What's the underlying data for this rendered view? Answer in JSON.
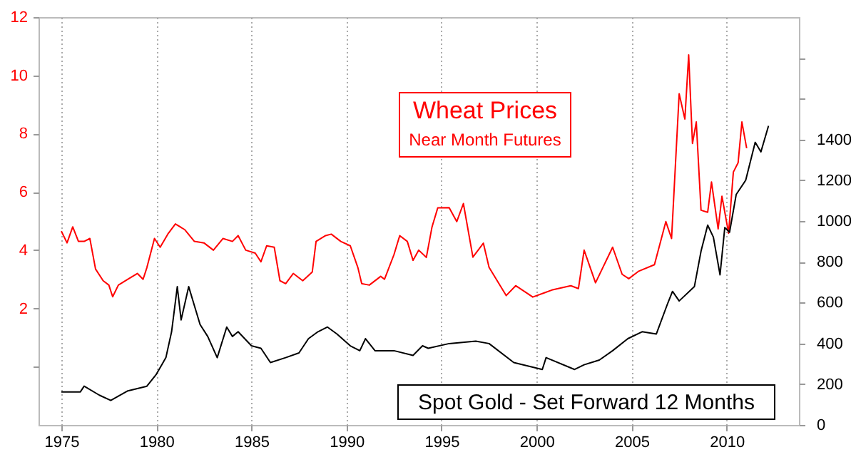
{
  "chart_data": {
    "type": "line",
    "xlim": [
      1973.8,
      2013.8
    ],
    "xticks": [
      1975,
      1980,
      1985,
      1990,
      1995,
      2000,
      2005,
      2010
    ],
    "ylim": [
      -2,
      12
    ],
    "yticks": [
      {
        "value": 0,
        "label": null
      },
      2,
      4,
      6,
      8,
      10,
      12
    ],
    "y2lim": [
      0,
      2000
    ],
    "y2ticks": [
      0,
      200,
      400,
      600,
      800,
      1000,
      1200,
      1400,
      {
        "value": 1600,
        "label": null
      },
      {
        "value": 1800,
        "label": null
      }
    ],
    "grid": "x",
    "annotations": [
      "Near Month Futures"
    ],
    "series": [
      {
        "name": "Wheat Prices",
        "color": "#ff0000",
        "x": [
          1975.0,
          1975.3,
          1975.6,
          1975.9,
          1976.2,
          1976.5,
          1976.8,
          1977.2,
          1977.5,
          1977.7,
          1978.0,
          1978.5,
          1979.0,
          1979.3,
          1979.5,
          1979.9,
          1980.2,
          1980.6,
          1981.0,
          1981.5,
          1982.0,
          1982.5,
          1983.0,
          1983.5,
          1984.0,
          1984.3,
          1984.7,
          1985.2,
          1985.5,
          1985.8,
          1986.2,
          1986.5,
          1986.8,
          1987.2,
          1987.7,
          1988.2,
          1988.4,
          1988.9,
          1989.2,
          1989.7,
          1990.2,
          1990.6,
          1990.8,
          1991.2,
          1991.8,
          1992.0,
          1992.5,
          1992.8,
          1993.2,
          1993.5,
          1993.8,
          1994.2,
          1994.5,
          1994.8,
          1995.4,
          1995.8,
          1996.15,
          1996.65,
          1997.2,
          1997.5,
          1998.4,
          1998.9,
          1999.8,
          2000.8,
          2001.8,
          2002.2,
          2002.5,
          2003.1,
          2004.0,
          2004.5,
          2004.85,
          2005.35,
          2006.2,
          2006.8,
          2007.1,
          2007.5,
          2007.8,
          2008.0,
          2008.2,
          2008.4,
          2008.65,
          2009.0,
          2009.2,
          2009.55,
          2009.75,
          2010.1,
          2010.35,
          2010.6,
          2010.8,
          2011.05
        ],
        "values": [
          4.65,
          4.25,
          4.8,
          4.3,
          4.3,
          4.4,
          3.35,
          2.95,
          2.8,
          2.4,
          2.8,
          3.0,
          3.2,
          3.0,
          3.4,
          4.4,
          4.1,
          4.55,
          4.9,
          4.7,
          4.3,
          4.25,
          4.0,
          4.4,
          4.3,
          4.5,
          4.0,
          3.9,
          3.6,
          4.15,
          4.1,
          2.95,
          2.85,
          3.2,
          2.95,
          3.25,
          4.3,
          4.5,
          4.55,
          4.3,
          4.15,
          3.4,
          2.85,
          2.8,
          3.1,
          3.0,
          3.85,
          4.5,
          4.3,
          3.65,
          4.0,
          3.75,
          4.8,
          5.45,
          5.46,
          4.98,
          5.6,
          3.76,
          4.24,
          3.41,
          2.44,
          2.78,
          2.39,
          2.63,
          2.78,
          2.68,
          4.0,
          2.88,
          4.1,
          3.17,
          3.02,
          3.27,
          3.5,
          4.98,
          4.4,
          9.37,
          8.5,
          10.7,
          7.66,
          8.4,
          5.37,
          5.3,
          6.34,
          4.73,
          5.85,
          4.58,
          6.68,
          7.0,
          8.4,
          7.5
        ]
      },
      {
        "name": "Spot Gold - Set Forward 12 Months",
        "color": "#000000",
        "axis": "y2",
        "x": [
          1975.0,
          1976.0,
          1976.2,
          1977.0,
          1977.6,
          1978.5,
          1979.5,
          1980.0,
          1980.5,
          1980.8,
          1981.1,
          1981.3,
          1981.7,
          1982.0,
          1982.3,
          1982.7,
          1983.2,
          1983.7,
          1984.0,
          1984.3,
          1985.0,
          1985.5,
          1986.0,
          1986.8,
          1987.5,
          1988.0,
          1988.5,
          1989.0,
          1989.5,
          1990.2,
          1990.7,
          1991.0,
          1991.5,
          1992.5,
          1993.5,
          1994.0,
          1994.3,
          1995.4,
          1996.8,
          1997.5,
          1998.8,
          2000.3,
          2000.5,
          2002.0,
          2002.5,
          2003.3,
          2004.0,
          2004.8,
          2005.55,
          2006.3,
          2006.9,
          2007.15,
          2007.5,
          2008.3,
          2008.65,
          2009.0,
          2009.3,
          2009.65,
          2009.9,
          2010.15,
          2010.5,
          2011.0,
          2011.5,
          2011.8,
          2012.2
        ],
        "values": [
          162,
          162,
          190,
          146,
          120,
          167,
          190,
          249,
          330,
          457,
          678,
          515,
          678,
          585,
          492,
          434,
          330,
          480,
          434,
          457,
          388,
          376,
          306,
          330,
          353,
          423,
          457,
          480,
          446,
          388,
          364,
          423,
          364,
          364,
          341,
          388,
          376,
          399,
          411,
          399,
          306,
          272,
          330,
          272,
          295,
          318,
          364,
          423,
          457,
          446,
          597,
          655,
          608,
          678,
          852,
          980,
          921,
          736,
          968,
          945,
          1130,
          1200,
          1386,
          1339,
          1467
        ]
      }
    ]
  }
}
